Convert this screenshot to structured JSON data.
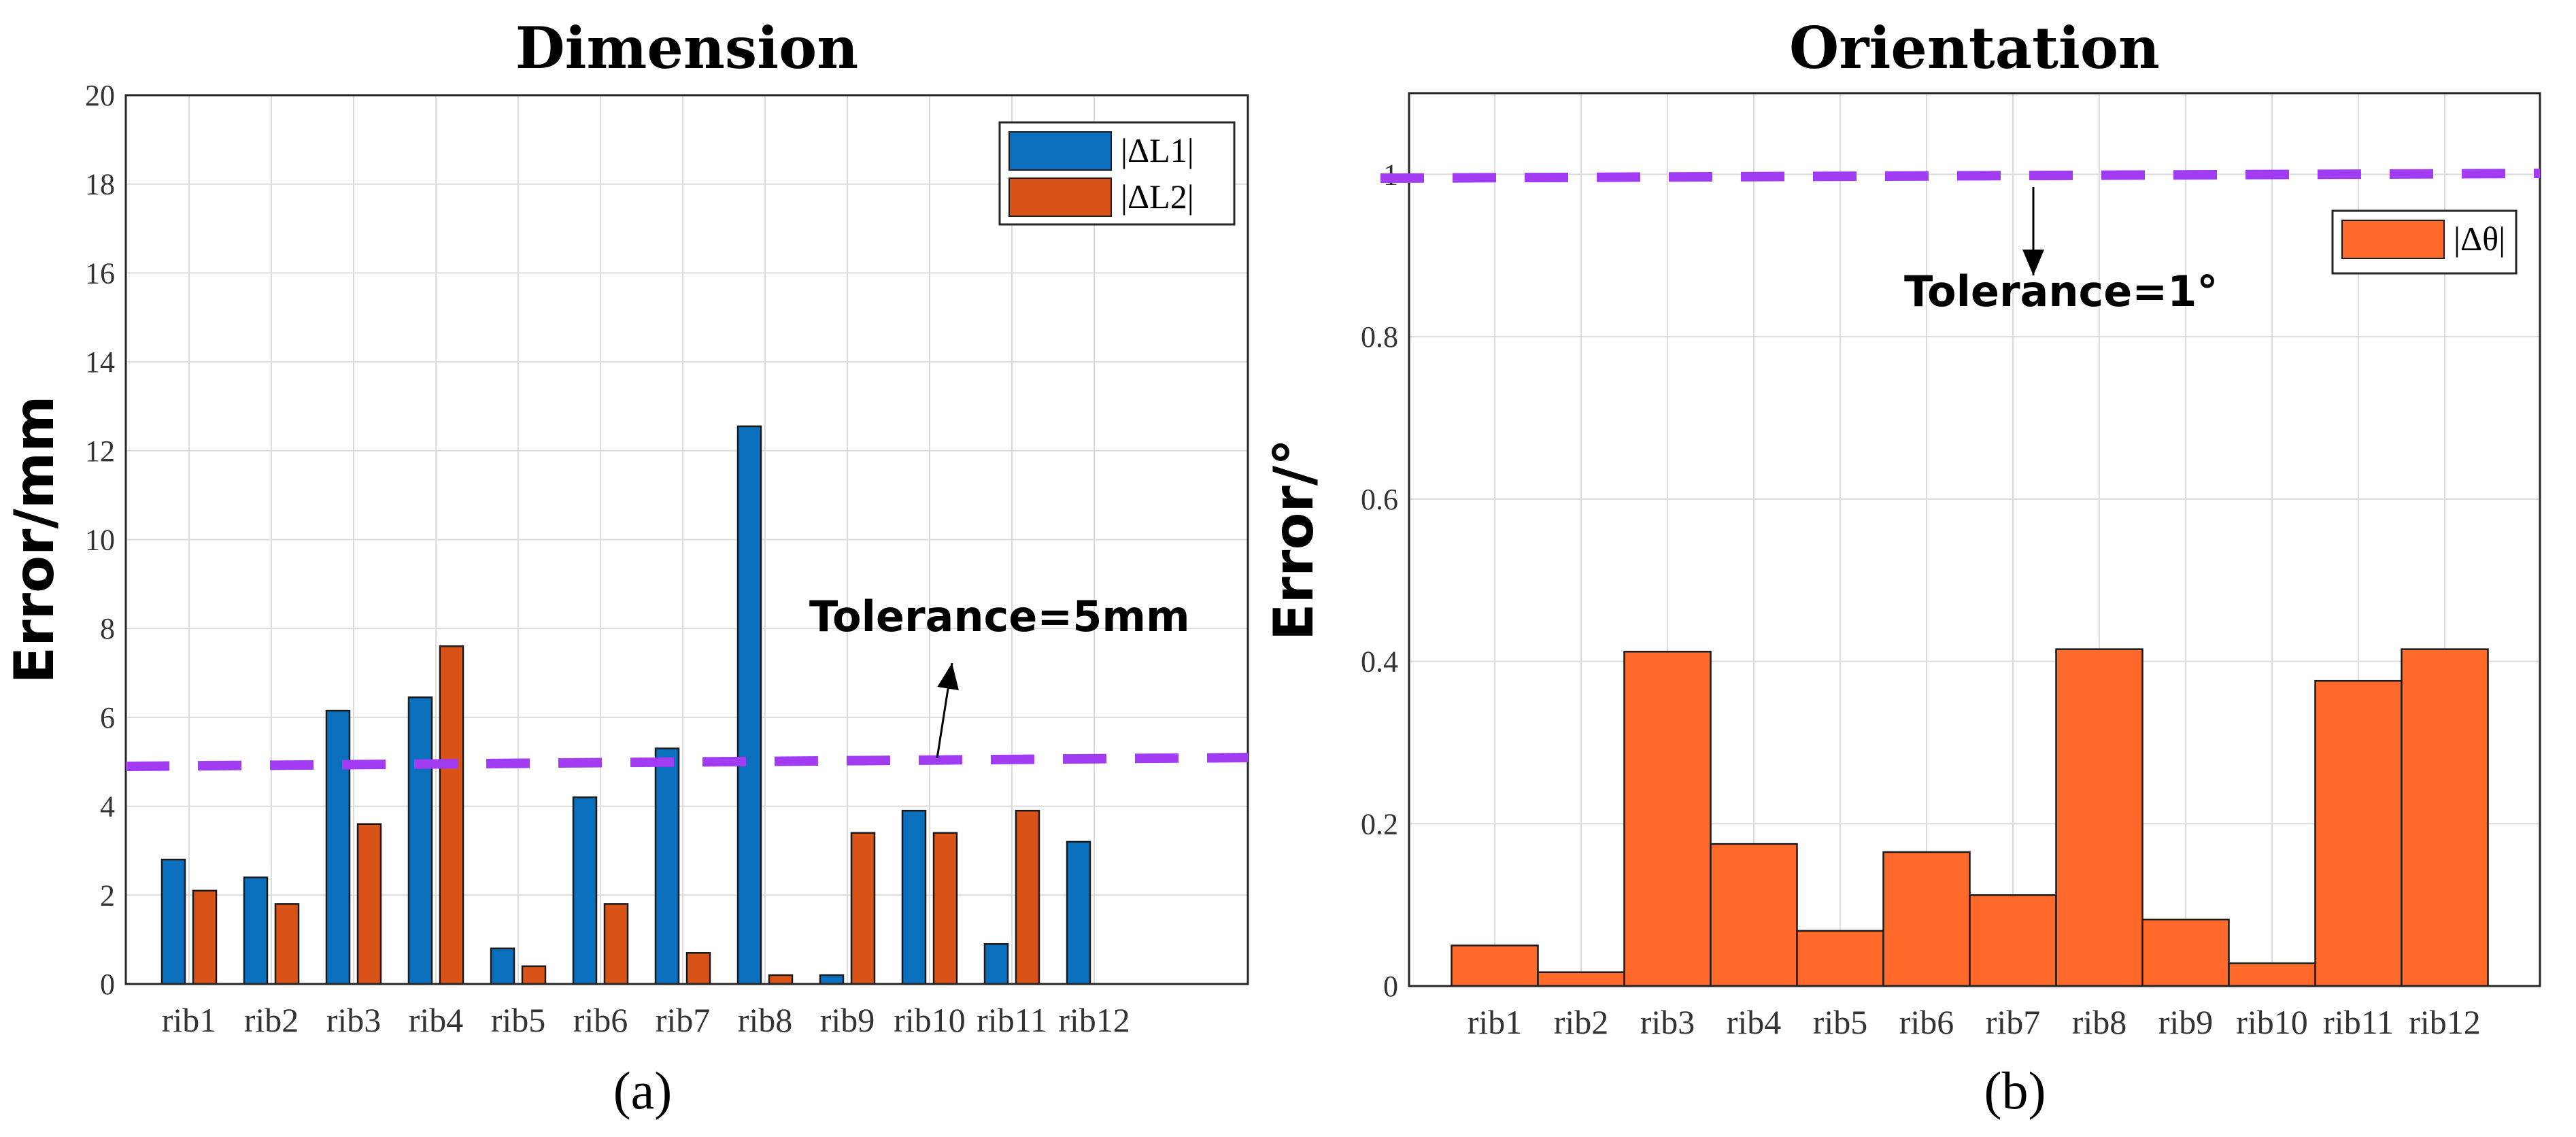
{
  "chart_data": [
    {
      "type": "bar",
      "title": "Dimension",
      "xlabel": "",
      "ylabel": "Error/mm",
      "ylim": [
        0,
        20
      ],
      "yticks": [
        0,
        2,
        4,
        6,
        8,
        10,
        12,
        14,
        16,
        18,
        20
      ],
      "categories": [
        "rib1",
        "rib2",
        "rib3",
        "rib4",
        "rib5",
        "rib6",
        "rib7",
        "rib8",
        "rib9",
        "rib10",
        "rib11",
        "rib12"
      ],
      "series": [
        {
          "name": "|ΔL1|",
          "color": "#0a6fbd",
          "values": [
            2.8,
            2.4,
            6.15,
            6.45,
            0.8,
            4.2,
            5.3,
            12.55,
            0.2,
            3.9,
            0.9,
            3.2
          ]
        },
        {
          "name": "|ΔL2|",
          "color": "#d95319",
          "values": [
            2.1,
            1.8,
            3.6,
            7.6,
            0.4,
            1.8,
            0.7,
            0.2,
            3.4,
            3.4,
            3.9,
            0
          ]
        }
      ],
      "tolerance": 5,
      "tolerance_label": "Tolerance=5mm",
      "tolerance_color": "#a23cf2",
      "grid": true,
      "legend": "top-right",
      "panel_label": "(a)"
    },
    {
      "type": "bar",
      "title": "Orientation",
      "xlabel": "",
      "ylabel": "Error/°",
      "ylim": [
        0,
        1.1
      ],
      "yticks": [
        0,
        0.2,
        0.4,
        0.6,
        0.8,
        1
      ],
      "categories": [
        "rib1",
        "rib2",
        "rib3",
        "rib4",
        "rib5",
        "rib6",
        "rib7",
        "rib8",
        "rib9",
        "rib10",
        "rib11",
        "rib12"
      ],
      "series": [
        {
          "name": "|Δθ|",
          "color": "#ff6a2a",
          "values": [
            0.05,
            0.017,
            0.412,
            0.175,
            0.068,
            0.165,
            0.112,
            0.415,
            0.082,
            0.028,
            0.376,
            0.415
          ]
        }
      ],
      "tolerance": 1,
      "tolerance_label": "Tolerance=1°",
      "tolerance_color": "#a23cf2",
      "grid": true,
      "legend": "top-right",
      "panel_label": "(b)"
    }
  ]
}
